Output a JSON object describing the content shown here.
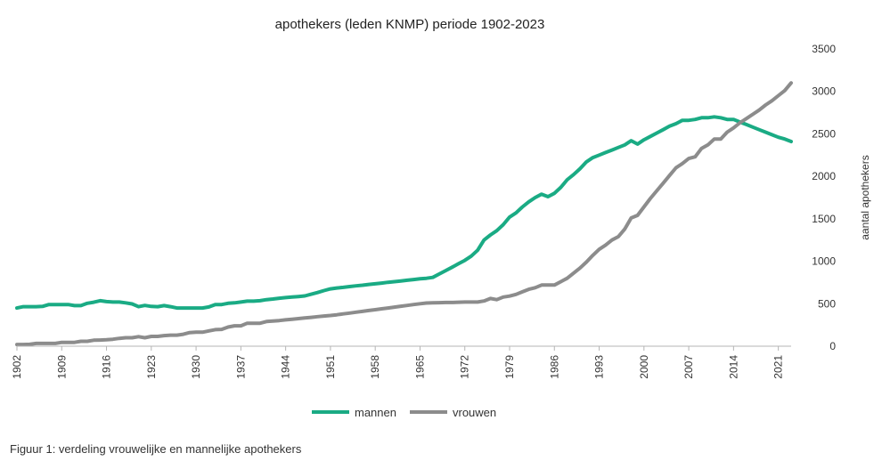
{
  "caption": "Figuur 1: verdeling vrouwelijke en mannelijke apothekers",
  "chart_data": {
    "type": "line",
    "title": "apothekers (leden KNMP) periode 1902-2023",
    "xlabel": "",
    "ylabel": "aantal apothekers",
    "xlim": [
      1902,
      2023
    ],
    "ylim": [
      0,
      3500
    ],
    "x_ticks": [
      1902,
      1909,
      1916,
      1923,
      1930,
      1937,
      1944,
      1951,
      1958,
      1965,
      1972,
      1979,
      1986,
      1993,
      2000,
      2007,
      2014,
      2021
    ],
    "y_ticks": [
      0,
      500,
      1000,
      1500,
      2000,
      2500,
      3000,
      3500
    ],
    "grid": false,
    "legend_position": "bottom",
    "series": [
      {
        "name": "mannen",
        "color": "#1aab84",
        "points": [
          [
            1902,
            450
          ],
          [
            1903,
            465
          ],
          [
            1904,
            465
          ],
          [
            1905,
            465
          ],
          [
            1906,
            468
          ],
          [
            1907,
            490
          ],
          [
            1908,
            490
          ],
          [
            1909,
            490
          ],
          [
            1910,
            490
          ],
          [
            1911,
            478
          ],
          [
            1912,
            478
          ],
          [
            1913,
            505
          ],
          [
            1914,
            518
          ],
          [
            1915,
            535
          ],
          [
            1916,
            525
          ],
          [
            1917,
            520
          ],
          [
            1918,
            520
          ],
          [
            1919,
            510
          ],
          [
            1920,
            498
          ],
          [
            1921,
            465
          ],
          [
            1922,
            480
          ],
          [
            1923,
            468
          ],
          [
            1924,
            465
          ],
          [
            1925,
            478
          ],
          [
            1926,
            465
          ],
          [
            1927,
            450
          ],
          [
            1928,
            450
          ],
          [
            1929,
            450
          ],
          [
            1930,
            450
          ],
          [
            1931,
            450
          ],
          [
            1932,
            462
          ],
          [
            1933,
            490
          ],
          [
            1934,
            490
          ],
          [
            1935,
            505
          ],
          [
            1936,
            510
          ],
          [
            1937,
            520
          ],
          [
            1938,
            530
          ],
          [
            1939,
            530
          ],
          [
            1940,
            535
          ],
          [
            1941,
            548
          ],
          [
            1942,
            555
          ],
          [
            1943,
            565
          ],
          [
            1944,
            572
          ],
          [
            1945,
            578
          ],
          [
            1946,
            585
          ],
          [
            1947,
            592
          ],
          [
            1948,
            612
          ],
          [
            1949,
            632
          ],
          [
            1950,
            655
          ],
          [
            1951,
            675
          ],
          [
            1952,
            685
          ],
          [
            1953,
            693
          ],
          [
            1954,
            702
          ],
          [
            1955,
            710
          ],
          [
            1956,
            718
          ],
          [
            1957,
            727
          ],
          [
            1958,
            735
          ],
          [
            1959,
            743
          ],
          [
            1960,
            752
          ],
          [
            1961,
            760
          ],
          [
            1962,
            768
          ],
          [
            1963,
            777
          ],
          [
            1964,
            785
          ],
          [
            1965,
            793
          ],
          [
            1966,
            800
          ],
          [
            1967,
            810
          ],
          [
            1968,
            850
          ],
          [
            1969,
            890
          ],
          [
            1970,
            930
          ],
          [
            1971,
            970
          ],
          [
            1972,
            1010
          ],
          [
            1973,
            1060
          ],
          [
            1974,
            1130
          ],
          [
            1975,
            1250
          ],
          [
            1976,
            1310
          ],
          [
            1977,
            1360
          ],
          [
            1978,
            1430
          ],
          [
            1979,
            1520
          ],
          [
            1980,
            1570
          ],
          [
            1981,
            1640
          ],
          [
            1982,
            1700
          ],
          [
            1983,
            1750
          ],
          [
            1984,
            1790
          ],
          [
            1985,
            1760
          ],
          [
            1986,
            1800
          ],
          [
            1987,
            1870
          ],
          [
            1988,
            1960
          ],
          [
            1989,
            2020
          ],
          [
            1990,
            2090
          ],
          [
            1991,
            2170
          ],
          [
            1992,
            2220
          ],
          [
            1993,
            2250
          ],
          [
            1994,
            2280
          ],
          [
            1995,
            2310
          ],
          [
            1996,
            2340
          ],
          [
            1997,
            2370
          ],
          [
            1998,
            2420
          ],
          [
            1999,
            2380
          ],
          [
            2000,
            2430
          ],
          [
            2001,
            2470
          ],
          [
            2002,
            2510
          ],
          [
            2003,
            2550
          ],
          [
            2004,
            2590
          ],
          [
            2005,
            2620
          ],
          [
            2006,
            2660
          ],
          [
            2007,
            2660
          ],
          [
            2008,
            2670
          ],
          [
            2009,
            2690
          ],
          [
            2010,
            2690
          ],
          [
            2011,
            2700
          ],
          [
            2012,
            2690
          ],
          [
            2013,
            2670
          ],
          [
            2014,
            2670
          ],
          [
            2015,
            2640
          ],
          [
            2016,
            2610
          ],
          [
            2017,
            2580
          ],
          [
            2018,
            2550
          ],
          [
            2019,
            2520
          ],
          [
            2020,
            2490
          ],
          [
            2021,
            2460
          ],
          [
            2022,
            2440
          ],
          [
            2023,
            2410
          ]
        ]
      },
      {
        "name": "vrouwen",
        "color": "#8c8c8c",
        "points": [
          [
            1902,
            20
          ],
          [
            1903,
            20
          ],
          [
            1904,
            22
          ],
          [
            1905,
            32
          ],
          [
            1906,
            32
          ],
          [
            1907,
            32
          ],
          [
            1908,
            32
          ],
          [
            1909,
            45
          ],
          [
            1910,
            45
          ],
          [
            1911,
            45
          ],
          [
            1912,
            58
          ],
          [
            1913,
            58
          ],
          [
            1914,
            70
          ],
          [
            1915,
            72
          ],
          [
            1916,
            75
          ],
          [
            1917,
            82
          ],
          [
            1918,
            92
          ],
          [
            1919,
            100
          ],
          [
            1920,
            100
          ],
          [
            1921,
            112
          ],
          [
            1922,
            100
          ],
          [
            1923,
            115
          ],
          [
            1924,
            115
          ],
          [
            1925,
            125
          ],
          [
            1926,
            130
          ],
          [
            1927,
            130
          ],
          [
            1928,
            140
          ],
          [
            1929,
            160
          ],
          [
            1930,
            165
          ],
          [
            1931,
            165
          ],
          [
            1932,
            180
          ],
          [
            1933,
            195
          ],
          [
            1934,
            198
          ],
          [
            1935,
            225
          ],
          [
            1936,
            240
          ],
          [
            1937,
            240
          ],
          [
            1938,
            270
          ],
          [
            1939,
            270
          ],
          [
            1940,
            270
          ],
          [
            1941,
            290
          ],
          [
            1942,
            295
          ],
          [
            1943,
            302
          ],
          [
            1944,
            310
          ],
          [
            1945,
            318
          ],
          [
            1946,
            325
          ],
          [
            1947,
            332
          ],
          [
            1948,
            340
          ],
          [
            1949,
            348
          ],
          [
            1950,
            355
          ],
          [
            1951,
            362
          ],
          [
            1952,
            370
          ],
          [
            1953,
            380
          ],
          [
            1954,
            390
          ],
          [
            1955,
            400
          ],
          [
            1956,
            410
          ],
          [
            1957,
            420
          ],
          [
            1958,
            430
          ],
          [
            1959,
            440
          ],
          [
            1960,
            450
          ],
          [
            1961,
            460
          ],
          [
            1962,
            470
          ],
          [
            1963,
            480
          ],
          [
            1964,
            490
          ],
          [
            1965,
            500
          ],
          [
            1966,
            508
          ],
          [
            1967,
            510
          ],
          [
            1968,
            512
          ],
          [
            1969,
            515
          ],
          [
            1970,
            515
          ],
          [
            1971,
            518
          ],
          [
            1972,
            520
          ],
          [
            1973,
            520
          ],
          [
            1974,
            520
          ],
          [
            1975,
            532
          ],
          [
            1976,
            562
          ],
          [
            1977,
            548
          ],
          [
            1978,
            578
          ],
          [
            1979,
            590
          ],
          [
            1980,
            610
          ],
          [
            1981,
            640
          ],
          [
            1982,
            670
          ],
          [
            1983,
            688
          ],
          [
            1984,
            720
          ],
          [
            1985,
            720
          ],
          [
            1986,
            720
          ],
          [
            1987,
            760
          ],
          [
            1988,
            800
          ],
          [
            1989,
            860
          ],
          [
            1990,
            920
          ],
          [
            1991,
            990
          ],
          [
            1992,
            1070
          ],
          [
            1993,
            1140
          ],
          [
            1994,
            1190
          ],
          [
            1995,
            1250
          ],
          [
            1996,
            1290
          ],
          [
            1997,
            1380
          ],
          [
            1998,
            1510
          ],
          [
            1999,
            1540
          ],
          [
            2000,
            1640
          ],
          [
            2001,
            1740
          ],
          [
            2002,
            1830
          ],
          [
            2003,
            1920
          ],
          [
            2004,
            2010
          ],
          [
            2005,
            2100
          ],
          [
            2006,
            2150
          ],
          [
            2007,
            2210
          ],
          [
            2008,
            2230
          ],
          [
            2009,
            2330
          ],
          [
            2010,
            2370
          ],
          [
            2011,
            2440
          ],
          [
            2012,
            2440
          ],
          [
            2013,
            2520
          ],
          [
            2014,
            2570
          ],
          [
            2015,
            2630
          ],
          [
            2016,
            2680
          ],
          [
            2017,
            2730
          ],
          [
            2018,
            2780
          ],
          [
            2019,
            2840
          ],
          [
            2020,
            2890
          ],
          [
            2021,
            2950
          ],
          [
            2022,
            3010
          ],
          [
            2023,
            3100
          ]
        ]
      }
    ]
  }
}
